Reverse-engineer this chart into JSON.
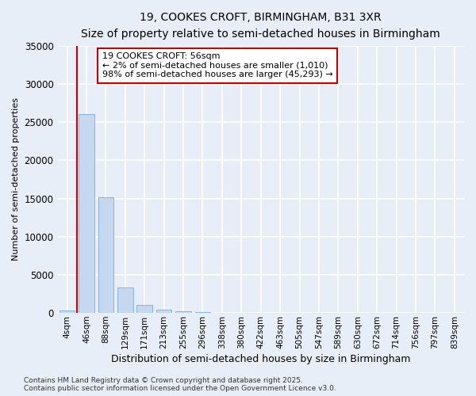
{
  "title_line1": "19, COOKES CROFT, BIRMINGHAM, B31 3XR",
  "title_line2": "Size of property relative to semi-detached houses in Birmingham",
  "xlabel": "Distribution of semi-detached houses by size in Birmingham",
  "ylabel": "Number of semi-detached properties",
  "footnote": "Contains HM Land Registry data © Crown copyright and database right 2025.\nContains public sector information licensed under the Open Government Licence v3.0.",
  "annotation_title": "19 COOKES CROFT: 56sqm",
  "annotation_line2": "← 2% of semi-detached houses are smaller (1,010)",
  "annotation_line3": "98% of semi-detached houses are larger (45,293) →",
  "bar_color": "#c5d8f0",
  "bar_edge_color": "#7aabe0",
  "highlight_line_color": "#cc0000",
  "background_color": "#e8eef8",
  "grid_color": "#ffffff",
  "categories": [
    "4sqm",
    "46sqm",
    "88sqm",
    "129sqm",
    "171sqm",
    "213sqm",
    "255sqm",
    "296sqm",
    "338sqm",
    "380sqm",
    "422sqm",
    "463sqm",
    "505sqm",
    "547sqm",
    "589sqm",
    "630sqm",
    "672sqm",
    "714sqm",
    "756sqm",
    "797sqm",
    "839sqm"
  ],
  "values": [
    350,
    26100,
    15200,
    3300,
    1100,
    480,
    270,
    120,
    0,
    0,
    0,
    0,
    0,
    0,
    0,
    0,
    0,
    0,
    0,
    0,
    0
  ],
  "ylim": [
    0,
    35000
  ],
  "yticks": [
    0,
    5000,
    10000,
    15000,
    20000,
    25000,
    30000,
    35000
  ],
  "subject_bar_index": 1,
  "red_line_x": 0.5
}
